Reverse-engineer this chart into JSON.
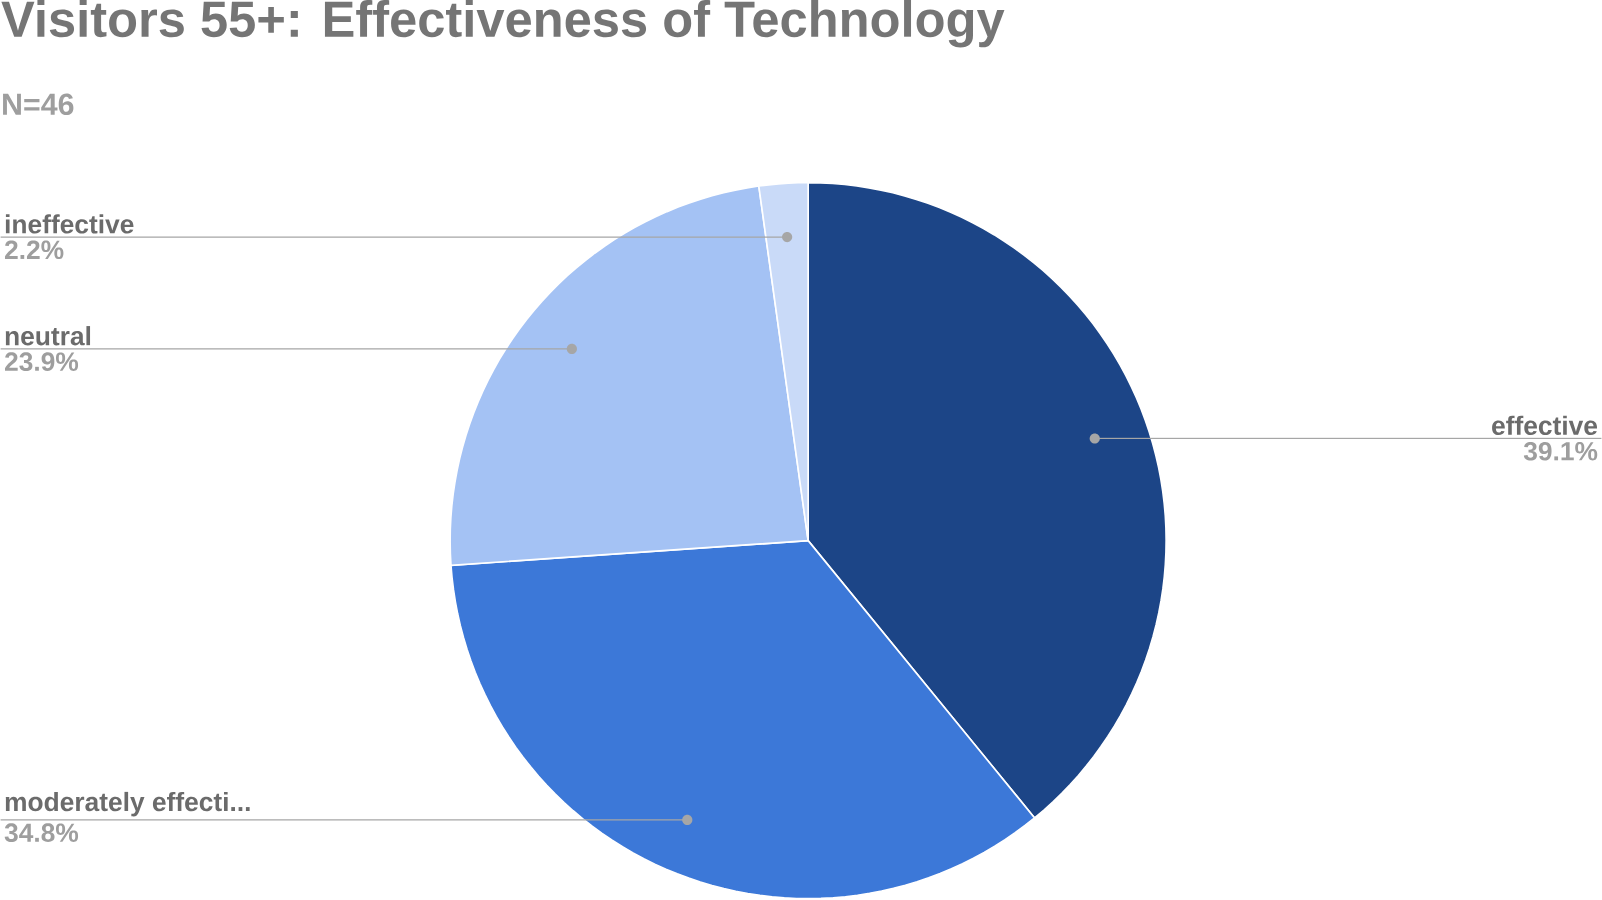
{
  "chart_data": {
    "type": "pie",
    "title": "Visitors 55+: Effectiveness of Technology",
    "subtitle": "N=46",
    "categories": [
      "effective",
      "moderately effecti...",
      "neutral",
      "ineffective"
    ],
    "values": [
      39.1,
      34.8,
      23.9,
      2.2
    ],
    "value_labels": [
      "39.1%",
      "34.8%",
      "23.9%",
      "2.2%"
    ],
    "colors": [
      "#1c4587",
      "#3c78d8",
      "#a4c2f4",
      "#c9daf8"
    ]
  }
}
